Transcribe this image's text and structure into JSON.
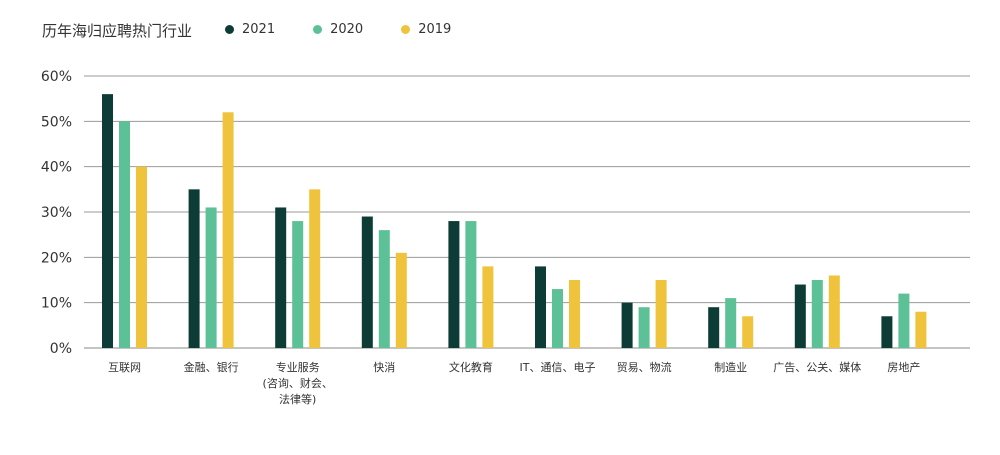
{
  "chart_data": {
    "type": "bar",
    "title": "历年海归应聘热门行业",
    "categories": [
      [
        "互联网"
      ],
      [
        "金融、银行"
      ],
      [
        "专业服务",
        "(咨询、财会、",
        "法律等)"
      ],
      [
        "快消"
      ],
      [
        "文化教育"
      ],
      [
        "IT、通信、电子"
      ],
      [
        "贸易、物流"
      ],
      [
        "制造业"
      ],
      [
        "广告、公关、媒体"
      ],
      [
        "房地产"
      ]
    ],
    "series": [
      {
        "name": "2021",
        "color": "#0d3b36",
        "values": [
          56,
          35,
          31,
          29,
          28,
          18,
          10,
          9,
          14,
          7
        ]
      },
      {
        "name": "2020",
        "color": "#5cc196",
        "values": [
          50,
          31,
          28,
          26,
          28,
          13,
          9,
          11,
          15,
          12
        ]
      },
      {
        "name": "2019",
        "color": "#f0c33c",
        "values": [
          40,
          52,
          35,
          21,
          18,
          15,
          15,
          7,
          16,
          8
        ]
      }
    ],
    "yticks": [
      "0%",
      "10%",
      "20%",
      "30%",
      "40%",
      "50%",
      "60%"
    ],
    "ylim": [
      0,
      60
    ],
    "grid": true,
    "legend_position": "top"
  }
}
